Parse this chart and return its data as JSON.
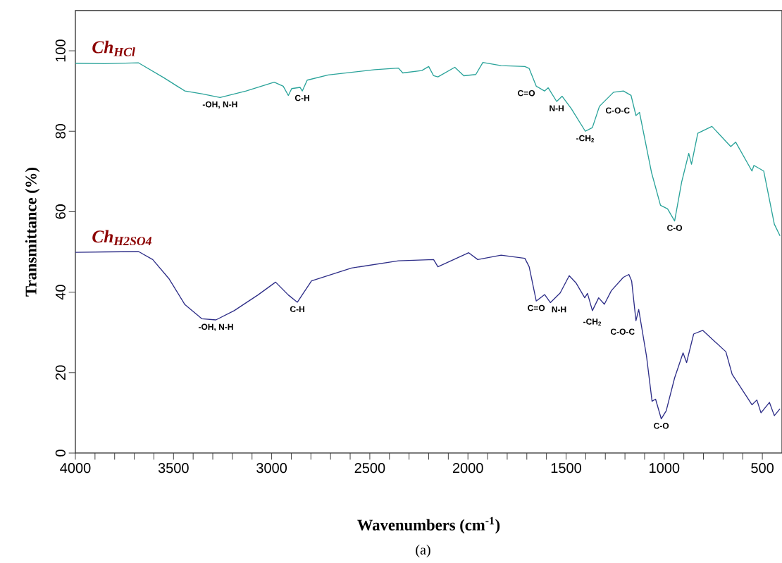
{
  "chart_data": {
    "type": "line",
    "xlabel": "Wavenumbers (cm$^{-1}$)",
    "ylabel": "Transmittance (%)",
    "xlim": [
      4000,
      400
    ],
    "ylim": [
      0,
      110
    ],
    "xticks": [
      4000,
      {
        "value": 3900,
        "label": null
      },
      {
        "value": 3800,
        "label": null
      },
      {
        "value": 3700,
        "label": null
      },
      {
        "value": 3600,
        "label": null
      },
      3500,
      {
        "value": 3400,
        "label": null
      },
      {
        "value": 3300,
        "label": null
      },
      {
        "value": 3200,
        "label": null
      },
      {
        "value": 3100,
        "label": null
      },
      3000,
      {
        "value": 2900,
        "label": null
      },
      {
        "value": 2800,
        "label": null
      },
      {
        "value": 2700,
        "label": null
      },
      {
        "value": 2600,
        "label": null
      },
      2500,
      {
        "value": 2400,
        "label": null
      },
      {
        "value": 2300,
        "label": null
      },
      {
        "value": 2200,
        "label": null
      },
      {
        "value": 2100,
        "label": null
      },
      2000,
      {
        "value": 1900,
        "label": null
      },
      {
        "value": 1800,
        "label": null
      },
      {
        "value": 1700,
        "label": null
      },
      {
        "value": 1600,
        "label": null
      },
      1500,
      {
        "value": 1400,
        "label": null
      },
      {
        "value": 1300,
        "label": null
      },
      {
        "value": 1200,
        "label": null
      },
      {
        "value": 1100,
        "label": null
      },
      1000,
      {
        "value": 900,
        "label": null
      },
      {
        "value": 800,
        "label": null
      },
      {
        "value": 700,
        "label": null
      },
      {
        "value": 600,
        "label": null
      },
      500
    ],
    "yticks": [
      0,
      20,
      40,
      60,
      80,
      100
    ],
    "grid": false,
    "legend": false,
    "marker": "none",
    "line_style": "solid",
    "series": [
      {
        "name": "Ch$_{HCl}$",
        "color": "#2aa39a",
        "x": [
          4000,
          3850,
          3678,
          3549,
          3442,
          3356,
          3263,
          3130,
          2987,
          2941,
          2915,
          2898,
          2855,
          2844,
          2819,
          2712,
          2475,
          2354,
          2332,
          2235,
          2200,
          2175,
          2153,
          2067,
          2021,
          1960,
          1924,
          1831,
          1710,
          1688,
          1652,
          1610,
          1591,
          1548,
          1520,
          1473,
          1402,
          1366,
          1330,
          1258,
          1208,
          1169,
          1144,
          1126,
          1065,
          1019,
          983,
          947,
          911,
          875,
          861,
          829,
          757,
          661,
          636,
          553,
          543,
          493,
          439,
          410
        ],
        "values": [
          96.9,
          96.8,
          97.0,
          93.3,
          90.0,
          89.3,
          88.4,
          90.0,
          92.2,
          91.2,
          88.9,
          90.6,
          90.9,
          90.0,
          92.7,
          94.0,
          95.3,
          95.7,
          94.5,
          95.1,
          96.1,
          93.8,
          93.5,
          95.9,
          93.8,
          94.1,
          97.1,
          96.3,
          96.1,
          95.6,
          91.2,
          90.0,
          90.8,
          87.4,
          88.7,
          85.6,
          80.0,
          80.9,
          86.2,
          89.7,
          90.0,
          88.9,
          83.9,
          84.7,
          69.8,
          61.6,
          60.7,
          57.7,
          67.4,
          74.5,
          71.8,
          79.5,
          81.2,
          76.2,
          77.3,
          70.1,
          71.5,
          70.1,
          56.9,
          54.0
        ]
      },
      {
        "name": "Ch$_{H2SO4}$",
        "color": "#2e2e88",
        "x": [
          4000,
          3850,
          3678,
          3606,
          3524,
          3442,
          3356,
          3284,
          3191,
          3070,
          2980,
          2915,
          2869,
          2797,
          2593,
          2354,
          2175,
          2153,
          1996,
          1950,
          1831,
          1710,
          1688,
          1652,
          1609,
          1580,
          1530,
          1484,
          1448,
          1405,
          1391,
          1366,
          1334,
          1305,
          1269,
          1208,
          1180,
          1166,
          1144,
          1130,
          1090,
          1062,
          1044,
          1015,
          990,
          947,
          904,
          886,
          850,
          804,
          686,
          654,
          553,
          528,
          507,
          464,
          439,
          410
        ],
        "values": [
          49.9,
          50.0,
          50.1,
          48.1,
          43.4,
          36.9,
          33.4,
          33.1,
          35.4,
          39.3,
          42.5,
          39.3,
          37.5,
          42.8,
          46.0,
          47.8,
          48.1,
          46.3,
          49.8,
          48.1,
          49.2,
          48.4,
          46.3,
          37.8,
          39.4,
          37.4,
          39.8,
          44.1,
          42.2,
          38.6,
          39.7,
          35.4,
          38.6,
          37.0,
          40.4,
          43.7,
          44.4,
          42.8,
          32.9,
          35.7,
          24.0,
          12.9,
          13.4,
          8.5,
          10.5,
          18.7,
          24.9,
          22.5,
          29.6,
          30.5,
          25.2,
          19.6,
          12.0,
          13.2,
          10.0,
          12.6,
          9.3,
          11.0
        ]
      }
    ],
    "annotations": [
      {
        "text": "-OH, N-H",
        "x": 3263,
        "y": 88.4
      },
      {
        "text": "C-H",
        "x": 2844,
        "y": 90.0
      },
      {
        "text": "C=O",
        "x": 1652,
        "y": 91.2
      },
      {
        "text": "N-H",
        "x": 1548,
        "y": 87.4
      },
      {
        "text": "-CH$_{2}$",
        "x": 1402,
        "y": 80.0
      },
      {
        "text": "C-O-C",
        "x": 1169,
        "y": 88.9
      },
      {
        "text": "C-O",
        "x": 947,
        "y": 57.7
      },
      {
        "text": "-OH, N-H",
        "x": 3284,
        "y": 33.1
      },
      {
        "text": "C-H",
        "x": 2869,
        "y": 37.5
      },
      {
        "text": "C=O",
        "x": 1652,
        "y": 37.8
      },
      {
        "text": "N-H",
        "x": 1580,
        "y": 37.4
      },
      {
        "text": "-CH$_{2}$",
        "x": 1366,
        "y": 35.4
      },
      {
        "text": "C-O-C",
        "x": 1144,
        "y": 32.9
      },
      {
        "text": "C-O",
        "x": 1015,
        "y": 8.5
      },
      "(a)"
    ]
  }
}
